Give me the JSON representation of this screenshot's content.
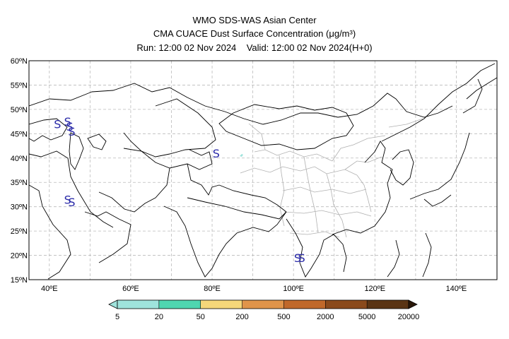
{
  "header": {
    "line1": "WMO SDS-WAS Asian Center",
    "line2": "CMA CUACE Dust Surface Concentration (μg/m³)",
    "line3": "Run: 12:00 02 Nov 2024    Valid: 12:00 02 Nov 2024(H+0)"
  },
  "map": {
    "lat_ticks": [
      "15ºN",
      "20ºN",
      "25ºN",
      "30ºN",
      "35ºN",
      "40ºN",
      "45ºN",
      "50ºN",
      "55ºN",
      "60ºN"
    ],
    "lon_ticks": [
      "40ºE",
      "60ºE",
      "80ºE",
      "100ºE",
      "120ºE",
      "140ºE"
    ],
    "lat_range": [
      15,
      60
    ],
    "lon_range": [
      35,
      150
    ],
    "gridlines": true,
    "dust_symbol": "S",
    "dust_symbol_color": "#2a2aa8"
  },
  "colorbar": {
    "thresholds": [
      "5",
      "20",
      "50",
      "200",
      "500",
      "2000",
      "5000",
      "20000"
    ],
    "colors": [
      "#9fe3dc",
      "#4fd6b0",
      "#f5d77a",
      "#e0944a",
      "#c0682a",
      "#8a4a1c",
      "#5a3414",
      "#2a1808"
    ]
  },
  "chart_data": {
    "type": "heatmap",
    "title": "CMA CUACE Dust Surface Concentration (μg/m³)",
    "levels": [
      5,
      20,
      50,
      200,
      500,
      2000,
      5000,
      20000
    ],
    "xlim": [
      35,
      150
    ],
    "ylim": [
      15,
      60
    ],
    "dust_symbol_locations": [
      {
        "lon": 42,
        "lat": 47
      },
      {
        "lon": 44.5,
        "lat": 47.5
      },
      {
        "lon": 45,
        "lat": 46.5
      },
      {
        "lon": 45.5,
        "lat": 45.5
      },
      {
        "lon": 44.5,
        "lat": 31.5
      },
      {
        "lon": 45.5,
        "lat": 31
      },
      {
        "lon": 81,
        "lat": 41
      },
      {
        "lon": 101,
        "lat": 19.5
      },
      {
        "lon": 102,
        "lat": 19.5
      }
    ],
    "concentration_areas": [
      {
        "lon": 87,
        "lat": 40.5,
        "level": "5-20"
      }
    ]
  }
}
